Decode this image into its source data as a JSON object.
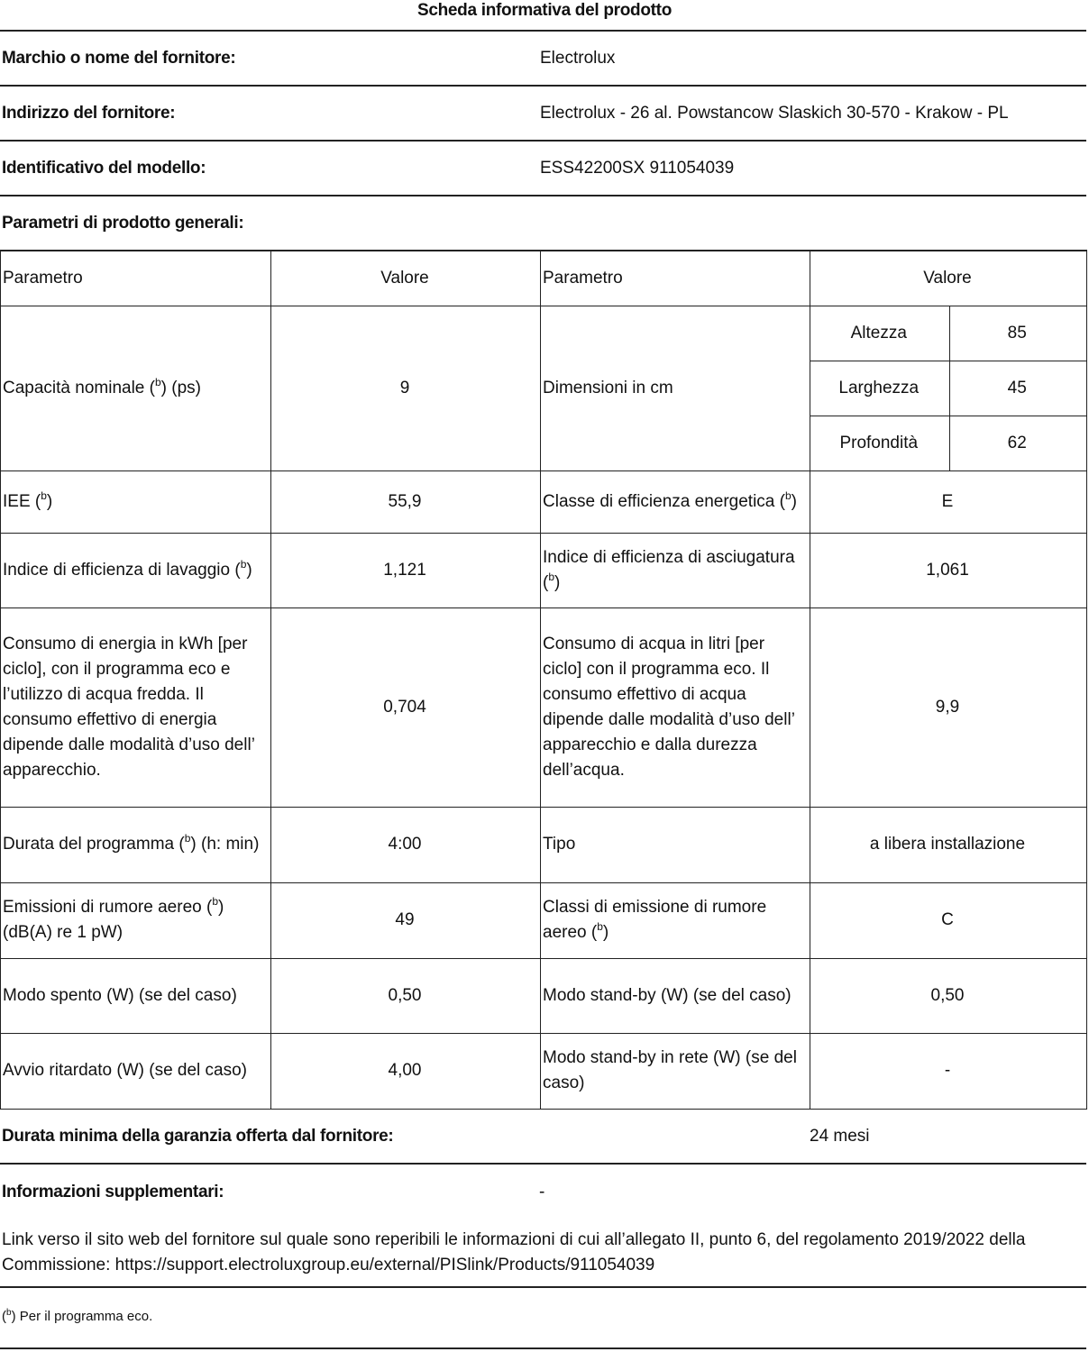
{
  "title": "Scheda informativa del prodotto",
  "supplier": {
    "label": "Marchio o nome del fornitore:",
    "value": "Electrolux"
  },
  "address": {
    "label": "Indirizzo del fornitore:",
    "value": "Electrolux - 26 al. Powstancow Slaskich 30-570 - Krakow - PL"
  },
  "model": {
    "label": "Identificativo del modello:",
    "value": "ESS42200SX 911054039"
  },
  "general_params_label": "Parametri di prodotto generali:",
  "table": {
    "headers": [
      "Parametro",
      "Valore",
      "Parametro",
      "Valore"
    ],
    "capacity": {
      "pre": "Capacità nominale (",
      "sup": "b",
      "post": ") (ps)",
      "value": "9"
    },
    "dimensions": {
      "label": "Dimensioni in cm",
      "rows": [
        {
          "name": "Altezza",
          "value": "85"
        },
        {
          "name": "Larghezza",
          "value": "45"
        },
        {
          "name": "Profondità",
          "value": "62"
        }
      ]
    },
    "rows": [
      {
        "l_pre": "IEE (",
        "l_sup": "b",
        "l_post": ")",
        "l_val": "55,9",
        "r_pre": "Classe di efficienza energetica (",
        "r_sup": "b",
        "r_post": ")",
        "r_val": "E"
      },
      {
        "l_pre": "Indice di efficienza di lavaggio (",
        "l_sup": "b",
        "l_post": ")",
        "l_val": "1,121",
        "r_pre": "Indice di efficienza di asciugatura (",
        "r_sup": "b",
        "r_post": ")",
        "r_val": "1,061"
      },
      {
        "l_pre": "Consumo di energia in kWh [per ciclo], con il programma eco e l’utilizzo di acqua fredda. Il consumo effettivo di energia dipende dalle modalità d’uso dell’ apparecchio.",
        "l_sup": "",
        "l_post": "",
        "l_val": "0,704",
        "r_pre": "Consumo di acqua in litri [per ciclo] con il programma eco. Il consumo effettivo di acqua dipende dalle modalità d’uso dell’ apparecchio e dalla durezza dell’acqua.",
        "r_sup": "",
        "r_post": "",
        "r_val": "9,9"
      },
      {
        "l_pre": "Durata del programma (",
        "l_sup": "b",
        "l_post": ") (h: min)",
        "l_val": "4:00",
        "r_pre": "Tipo",
        "r_sup": "",
        "r_post": "",
        "r_val": "a libera installazione"
      },
      {
        "l_pre": "Emissioni di rumore aereo (",
        "l_sup": "b",
        "l_post": ") (dB(A) re 1 pW)",
        "l_val": "49",
        "r_pre": "Classi di emissione di rumore aereo (",
        "r_sup": "b",
        "r_post": ")",
        "r_val": "C"
      },
      {
        "l_pre": "Modo spento (W) (se del caso)",
        "l_sup": "",
        "l_post": "",
        "l_val": "0,50",
        "r_pre": "Modo stand-by (W) (se del caso)",
        "r_sup": "",
        "r_post": "",
        "r_val": "0,50"
      },
      {
        "l_pre": "Avvio ritardato (W) (se del caso)",
        "l_sup": "",
        "l_post": "",
        "l_val": "4,00",
        "r_pre": "Modo stand-by in rete (W) (se del caso)",
        "r_sup": "",
        "r_post": "",
        "r_val": "-"
      }
    ]
  },
  "warranty": {
    "label": "Durata minima della garanzia offerta dal fornitore:",
    "value": "24 mesi"
  },
  "additional": {
    "label": "Informazioni supplementari:",
    "value": "-"
  },
  "link_text": "Link verso il sito web del fornitore sul quale sono reperibili le informazioni di cui all’allegato II, punto 6, del regolamento 2019/2022 della Commissione: https://support.electroluxgroup.eu/external/PISlink/Products/911054039",
  "footnote": {
    "sup": "b",
    "text": " Per il programma eco."
  }
}
